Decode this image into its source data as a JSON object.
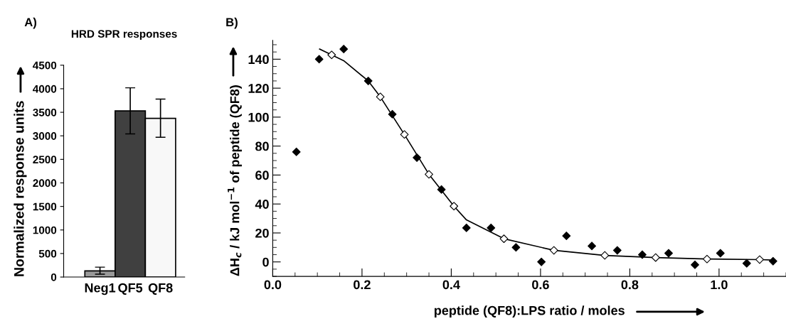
{
  "chart_data": [
    {
      "type": "bar",
      "title": "HRD SPR responses",
      "ylabel": "Normalized response units",
      "categories": [
        "Neg1",
        "QF5",
        "QF8"
      ],
      "values": [
        130,
        3530,
        3370
      ],
      "colors": [
        "#999999",
        "#404040",
        "#f8f8f8"
      ],
      "errors": [
        [
          60,
          210
        ],
        [
          3040,
          4020
        ],
        [
          2970,
          3780
        ]
      ],
      "ylim": [
        0,
        4500
      ],
      "yticks": [
        0,
        500,
        1000,
        1500,
        2000,
        2500,
        3000,
        3500,
        4000,
        4500
      ],
      "grid": false,
      "legend": false,
      "annotations": [
        "A)"
      ]
    },
    {
      "type": "scatter",
      "xlabel": "peptide (QF8):LPS ratio / moles",
      "ylabel": "ΔH$_{c}$ / kJ mol$^{−1}$ of peptide (QF8)",
      "xlim": [
        0,
        1.15
      ],
      "xticks": [
        {
          "value": 0,
          "label": "0.0"
        },
        0.2,
        0.4,
        0.6,
        0.8,
        {
          "value": 1,
          "label": "1.0"
        }
      ],
      "ylim": [
        -10,
        153
      ],
      "yticks": [
        0,
        20,
        40,
        60,
        80,
        100,
        120,
        140
      ],
      "grid": false,
      "legend": false,
      "marker": "diamond",
      "annotations": [
        "B)"
      ],
      "series": [
        {
          "type": "scatter",
          "color": "#000000",
          "x": [
            0.053,
            0.104,
            0.159,
            0.214,
            0.268,
            0.323,
            0.378,
            0.434,
            0.489,
            0.545,
            0.602,
            0.658,
            0.715,
            0.772,
            0.828,
            0.887,
            0.946,
            1.003,
            1.062,
            1.121
          ],
          "values": [
            76,
            140,
            147,
            125,
            102,
            72,
            50,
            23.5,
            23.5,
            10,
            0,
            18,
            11,
            8,
            5,
            6,
            -2,
            6,
            -1,
            0.5
          ]
        },
        {
          "type": "scatter",
          "color": "#ffffff",
          "x": [
            0.132,
            0.241,
            0.295,
            0.35,
            0.406,
            0.518,
            0.63,
            0.744,
            0.858,
            0.973,
            1.091
          ],
          "values": [
            143,
            114,
            88,
            60.5,
            38.5,
            16,
            8,
            4.5,
            3,
            2,
            1.6
          ]
        },
        {
          "type": "line",
          "color": "#000000",
          "marker": "none",
          "x": [
            0.105,
            0.132,
            0.159,
            0.214,
            0.241,
            0.295,
            0.35,
            0.406,
            0.434,
            0.518,
            0.63,
            0.744,
            0.858,
            0.973,
            1.091,
            1.121
          ],
          "values": [
            147,
            143,
            139,
            125,
            114,
            88,
            60.5,
            38.5,
            29,
            16,
            8,
            4.5,
            3,
            2,
            1.6,
            1.3
          ]
        }
      ]
    }
  ]
}
